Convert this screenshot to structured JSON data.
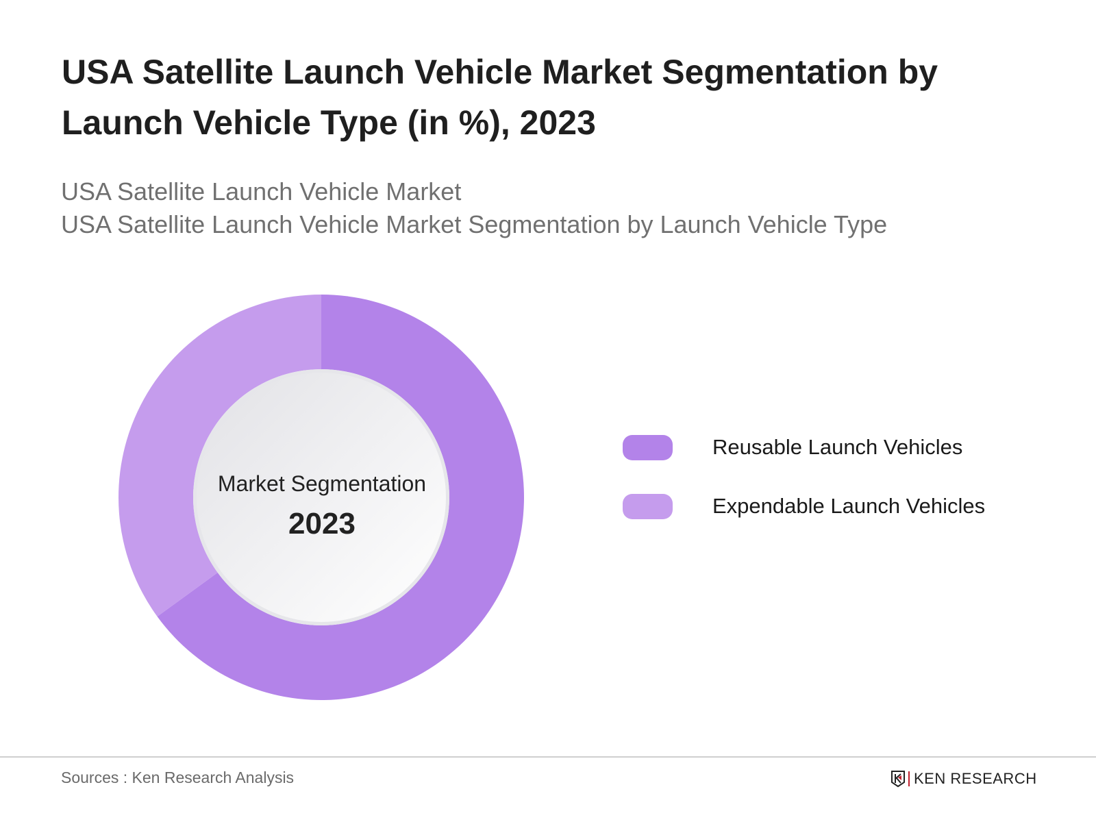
{
  "title": "USA Satellite Launch Vehicle Market Segmentation by Launch Vehicle Type (in %), 2023",
  "subtitle_lines": [
    "USA Satellite Launch Vehicle Market",
    "USA Satellite Launch Vehicle Market Segmentation by Launch Vehicle Type"
  ],
  "chart_data": {
    "type": "pie",
    "variant": "donut",
    "categories": [
      "Reusable Launch Vehicles",
      "Expendable Launch Vehicles"
    ],
    "values": [
      65,
      35
    ],
    "colors": [
      "#b383e9",
      "#c59ced"
    ],
    "center_label": "Market Segmentation",
    "center_value": "2023",
    "legend_position": "right",
    "data_labels": false
  },
  "legend": [
    {
      "label": "Reusable Launch Vehicles",
      "color": "#b383e9"
    },
    {
      "label": "Expendable Launch Vehicles",
      "color": "#c59ced"
    }
  ],
  "footer": {
    "sources": "Sources : Ken Research Analysis",
    "logo_text": "KEN RESEARCH",
    "logo_accent": "#c0202e"
  }
}
